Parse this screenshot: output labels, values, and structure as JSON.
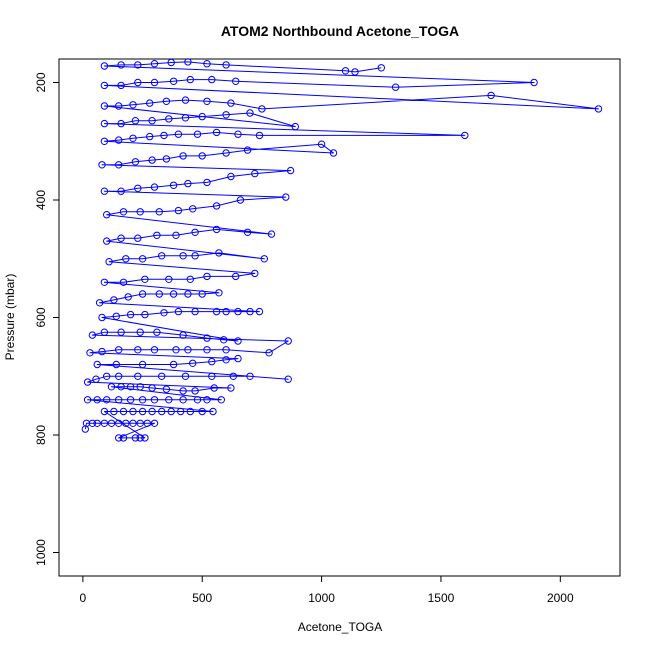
{
  "chart_data": {
    "type": "scatter",
    "title": "ATOM2 Northbound Acetone_TOGA",
    "xlabel": "Acetone_TOGA",
    "ylabel": "Pressure (mbar)",
    "xlim": [
      -100,
      2250
    ],
    "ylim": [
      1040,
      160
    ],
    "y_reversed": true,
    "x_ticks": [
      0,
      500,
      1000,
      1500,
      2000
    ],
    "y_ticks": [
      200,
      400,
      600,
      800,
      1000
    ],
    "color": "#0000ff",
    "marker": "open-circle",
    "connect_points": true,
    "series": [
      {
        "values": [
          [
            10,
            790
          ],
          [
            15,
            780
          ],
          [
            40,
            780
          ],
          [
            60,
            780
          ],
          [
            90,
            780
          ],
          [
            120,
            780
          ],
          [
            150,
            780
          ],
          [
            180,
            780
          ],
          [
            210,
            780
          ],
          [
            240,
            780
          ],
          [
            270,
            780
          ],
          [
            300,
            780
          ],
          [
            150,
            805
          ],
          [
            170,
            805
          ],
          [
            220,
            805
          ],
          [
            240,
            805
          ],
          [
            260,
            805
          ],
          [
            90,
            760
          ],
          [
            130,
            760
          ],
          [
            170,
            760
          ],
          [
            210,
            760
          ],
          [
            250,
            760
          ],
          [
            290,
            760
          ],
          [
            330,
            760
          ],
          [
            370,
            760
          ],
          [
            410,
            760
          ],
          [
            450,
            760
          ],
          [
            500,
            760
          ],
          [
            545,
            760
          ],
          [
            20,
            740
          ],
          [
            60,
            740
          ],
          [
            100,
            740
          ],
          [
            150,
            740
          ],
          [
            200,
            740
          ],
          [
            250,
            740
          ],
          [
            300,
            740
          ],
          [
            360,
            740
          ],
          [
            420,
            740
          ],
          [
            480,
            740
          ],
          [
            520,
            740
          ],
          [
            580,
            740
          ],
          [
            120,
            718
          ],
          [
            160,
            718
          ],
          [
            200,
            718
          ],
          [
            240,
            718
          ],
          [
            290,
            720
          ],
          [
            350,
            722
          ],
          [
            420,
            725
          ],
          [
            470,
            725
          ],
          [
            550,
            720
          ],
          [
            620,
            720
          ],
          [
            20,
            710
          ],
          [
            55,
            705
          ],
          [
            100,
            700
          ],
          [
            150,
            700
          ],
          [
            230,
            700
          ],
          [
            330,
            700
          ],
          [
            430,
            700
          ],
          [
            540,
            700
          ],
          [
            630,
            700
          ],
          [
            700,
            700
          ],
          [
            860,
            705
          ],
          [
            60,
            680
          ],
          [
            140,
            680
          ],
          [
            250,
            680
          ],
          [
            380,
            680
          ],
          [
            460,
            678
          ],
          [
            540,
            675
          ],
          [
            600,
            672
          ],
          [
            650,
            670
          ],
          [
            30,
            660
          ],
          [
            80,
            658
          ],
          [
            150,
            655
          ],
          [
            230,
            655
          ],
          [
            300,
            655
          ],
          [
            390,
            655
          ],
          [
            440,
            655
          ],
          [
            520,
            655
          ],
          [
            600,
            655
          ],
          [
            780,
            660
          ],
          [
            860,
            640
          ],
          [
            40,
            630
          ],
          [
            90,
            625
          ],
          [
            160,
            625
          ],
          [
            240,
            625
          ],
          [
            310,
            625
          ],
          [
            420,
            630
          ],
          [
            520,
            635
          ],
          [
            590,
            638
          ],
          [
            650,
            640
          ],
          [
            80,
            600
          ],
          [
            140,
            598
          ],
          [
            200,
            595
          ],
          [
            260,
            595
          ],
          [
            340,
            592
          ],
          [
            400,
            590
          ],
          [
            470,
            590
          ],
          [
            560,
            590
          ],
          [
            600,
            590
          ],
          [
            650,
            590
          ],
          [
            700,
            590
          ],
          [
            740,
            590
          ],
          [
            70,
            575
          ],
          [
            130,
            570
          ],
          [
            190,
            565
          ],
          [
            250,
            560
          ],
          [
            320,
            560
          ],
          [
            380,
            560
          ],
          [
            440,
            560
          ],
          [
            500,
            560
          ],
          [
            570,
            558
          ],
          [
            90,
            540
          ],
          [
            170,
            540
          ],
          [
            260,
            535
          ],
          [
            360,
            535
          ],
          [
            450,
            535
          ],
          [
            520,
            530
          ],
          [
            640,
            530
          ],
          [
            720,
            525
          ],
          [
            110,
            505
          ],
          [
            180,
            500
          ],
          [
            250,
            500
          ],
          [
            330,
            495
          ],
          [
            420,
            495
          ],
          [
            470,
            495
          ],
          [
            570,
            490
          ],
          [
            760,
            500
          ],
          [
            100,
            470
          ],
          [
            160,
            465
          ],
          [
            230,
            465
          ],
          [
            310,
            460
          ],
          [
            390,
            460
          ],
          [
            470,
            455
          ],
          [
            560,
            450
          ],
          [
            690,
            455
          ],
          [
            790,
            458
          ],
          [
            100,
            425
          ],
          [
            170,
            420
          ],
          [
            240,
            420
          ],
          [
            320,
            420
          ],
          [
            400,
            418
          ],
          [
            460,
            415
          ],
          [
            560,
            410
          ],
          [
            660,
            400
          ],
          [
            850,
            395
          ],
          [
            90,
            385
          ],
          [
            160,
            385
          ],
          [
            230,
            380
          ],
          [
            300,
            378
          ],
          [
            380,
            375
          ],
          [
            440,
            372
          ],
          [
            520,
            370
          ],
          [
            620,
            360
          ],
          [
            720,
            355
          ],
          [
            870,
            350
          ],
          [
            80,
            340
          ],
          [
            150,
            340
          ],
          [
            220,
            335
          ],
          [
            290,
            332
          ],
          [
            350,
            330
          ],
          [
            420,
            325
          ],
          [
            500,
            325
          ],
          [
            600,
            320
          ],
          [
            690,
            315
          ],
          [
            1000,
            305
          ],
          [
            1050,
            320
          ],
          [
            90,
            300
          ],
          [
            150,
            298
          ],
          [
            210,
            295
          ],
          [
            280,
            292
          ],
          [
            340,
            290
          ],
          [
            400,
            288
          ],
          [
            480,
            288
          ],
          [
            560,
            285
          ],
          [
            650,
            288
          ],
          [
            740,
            290
          ],
          [
            1600,
            290
          ],
          [
            90,
            270
          ],
          [
            160,
            270
          ],
          [
            220,
            265
          ],
          [
            290,
            265
          ],
          [
            360,
            262
          ],
          [
            430,
            260
          ],
          [
            500,
            258
          ],
          [
            600,
            255
          ],
          [
            700,
            252
          ],
          [
            890,
            275
          ],
          [
            90,
            240
          ],
          [
            150,
            240
          ],
          [
            210,
            238
          ],
          [
            280,
            235
          ],
          [
            350,
            232
          ],
          [
            430,
            230
          ],
          [
            520,
            232
          ],
          [
            620,
            235
          ],
          [
            750,
            245
          ],
          [
            1710,
            222
          ],
          [
            2160,
            245
          ],
          [
            90,
            205
          ],
          [
            160,
            205
          ],
          [
            230,
            200
          ],
          [
            300,
            200
          ],
          [
            380,
            198
          ],
          [
            450,
            195
          ],
          [
            540,
            195
          ],
          [
            640,
            198
          ],
          [
            1310,
            208
          ],
          [
            1890,
            200
          ],
          [
            90,
            172
          ],
          [
            160,
            170
          ],
          [
            230,
            170
          ],
          [
            300,
            168
          ],
          [
            370,
            166
          ],
          [
            440,
            165
          ],
          [
            520,
            168
          ],
          [
            600,
            170
          ],
          [
            1100,
            180
          ],
          [
            1140,
            182
          ],
          [
            1250,
            175
          ]
        ]
      }
    ]
  }
}
